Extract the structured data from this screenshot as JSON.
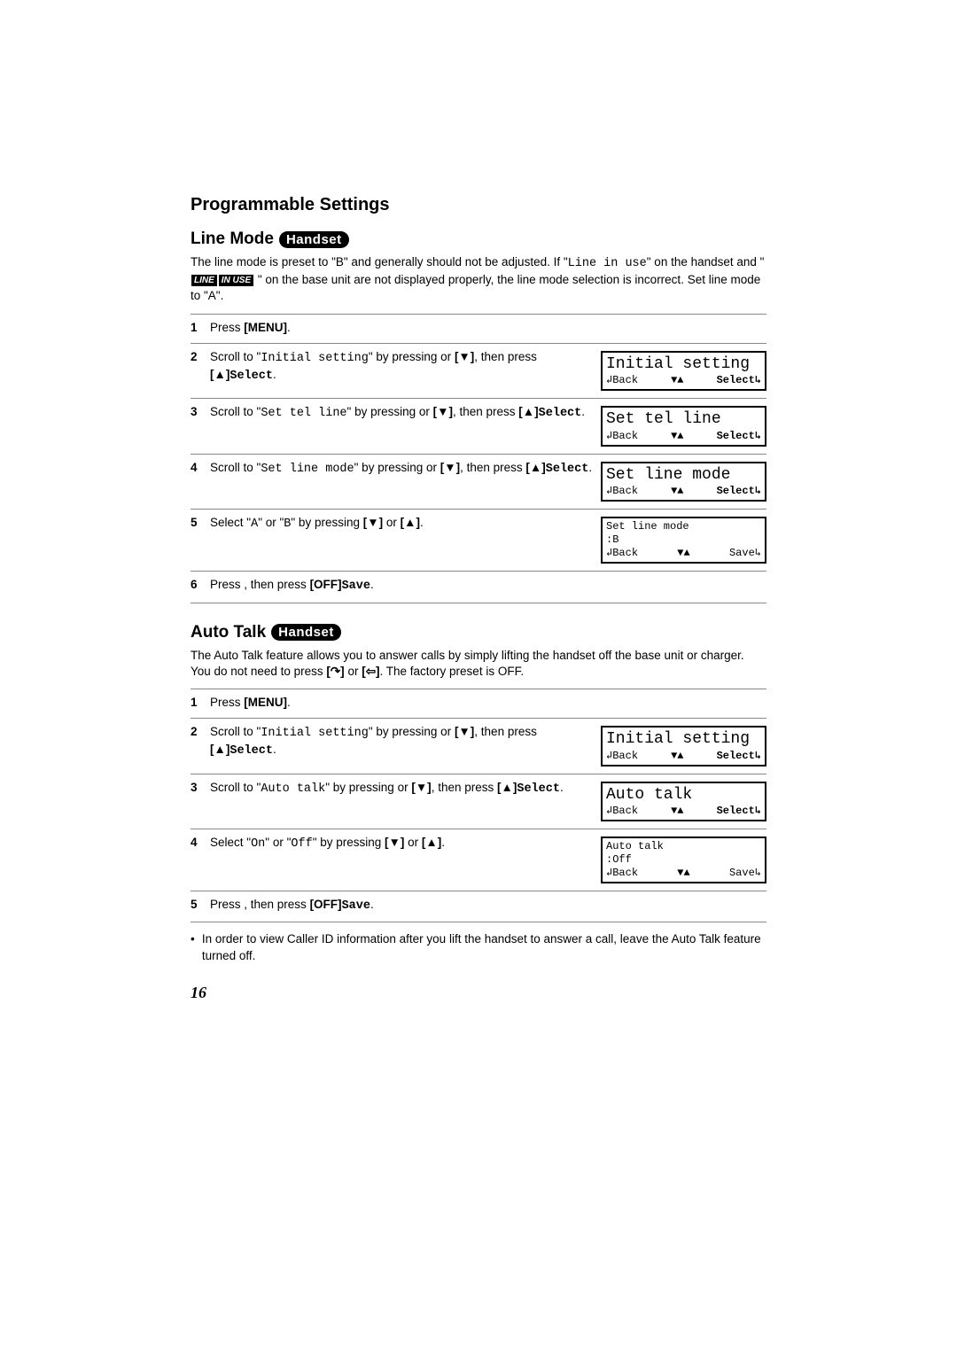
{
  "header": "Programmable Settings",
  "lineMode": {
    "title": "Line Mode",
    "badge": "Handset",
    "intro_pre": "The line mode is preset to \"B\" and generally should not be adjusted. If \"",
    "intro_mono1": "Line in use",
    "intro_mid": "\" on the handset and \" ",
    "badge_line": "LINE",
    "badge_inuse": "IN USE",
    "intro_after": " \" on the base unit are not displayed properly, the line mode selection is incorrect. Set line mode to \"A\".",
    "steps": [
      {
        "n": "1",
        "text_pre": "Press ",
        "bold1": "[MENU]",
        "text_post": "."
      },
      {
        "n": "2",
        "text_pre": "Scroll to \"",
        "mono1": "Initial setting",
        "text_mid": "\" by pressing ",
        "bold1": "[▼]",
        "text_mid2": " or ",
        "bold2": "[▲]",
        "text_mid3": ", then press ",
        "boldmono": "Select",
        "text_post": ".",
        "lcd": {
          "type": "big",
          "line1": "Initial setting",
          "left": "↲Back",
          "mid": "▼▲",
          "right": "Select↳",
          "rightBold": true
        }
      },
      {
        "n": "3",
        "text_pre": "Scroll to \"",
        "mono1": "Set tel line",
        "text_mid": "\" by pressing ",
        "bold1": "[▼]",
        "text_mid2": " or ",
        "bold2": "[▲]",
        "text_mid3": ", then press ",
        "boldmono": "Select",
        "text_post": ".",
        "lcd": {
          "type": "big",
          "line1": "Set tel line",
          "left": "↲Back",
          "mid": "▼▲",
          "right": "Select↳",
          "rightBold": true
        }
      },
      {
        "n": "4",
        "text_pre": "Scroll to \"",
        "mono1": "Set line mode",
        "text_mid": "\" by pressing ",
        "bold1": "[▼]",
        "text_mid2": " or ",
        "bold2": "[▲]",
        "text_mid3": ", then press ",
        "boldmono": "Select",
        "text_post": ".",
        "lcd": {
          "type": "big",
          "line1": "Set line mode",
          "left": "↲Back",
          "mid": "▼▲",
          "right": "Select↳",
          "rightBold": true
        }
      },
      {
        "n": "5",
        "text_pre": "Select \"",
        "mono1": "A",
        "text_mid": "\" or \"",
        "mono2": "B",
        "text_mid2": "\" by pressing ",
        "bold1": "[▼]",
        "text_mid3": " or ",
        "bold2": "[▲]",
        "text_post": ".",
        "lcd": {
          "type": "small",
          "line1": "Set line mode",
          "line2": ":B",
          "left": "↲Back",
          "mid": "▼▲",
          "right": "Save↳",
          "rightBold": false
        }
      },
      {
        "n": "6",
        "text_pre": "Press ",
        "boldmono": "Save",
        "text_mid": ", then press ",
        "bold1": "[OFF]",
        "text_post": "."
      }
    ]
  },
  "autoTalk": {
    "title": "Auto Talk",
    "badge": "Handset",
    "intro_pre": "The Auto Talk feature allows you to answer calls by simply lifting the handset off the base unit or charger. You do not need to press ",
    "bold1": "[↷]",
    "intro_mid": " or ",
    "bold2": "[⇦]",
    "intro_post": ". The factory preset is OFF.",
    "steps": [
      {
        "n": "1",
        "text_pre": "Press ",
        "bold1": "[MENU]",
        "text_post": "."
      },
      {
        "n": "2",
        "text_pre": "Scroll to \"",
        "mono1": "Initial setting",
        "text_mid": "\" by pressing ",
        "bold1": "[▼]",
        "text_mid2": " or ",
        "bold2": "[▲]",
        "text_mid3": ", then press ",
        "boldmono": "Select",
        "text_post": ".",
        "lcd": {
          "type": "big",
          "line1": "Initial setting",
          "left": "↲Back",
          "mid": "▼▲",
          "right": "Select↳",
          "rightBold": true
        }
      },
      {
        "n": "3",
        "text_pre": "Scroll to \"",
        "mono1": "Auto talk",
        "text_mid": "\" by pressing ",
        "bold1": "[▼]",
        "text_mid2": " or ",
        "bold2": "[▲]",
        "text_mid3": ", then press ",
        "boldmono": "Select",
        "text_post": ".",
        "lcd": {
          "type": "big",
          "line1": "Auto talk",
          "left": "↲Back",
          "mid": "▼▲",
          "right": "Select↳",
          "rightBold": true
        }
      },
      {
        "n": "4",
        "text_pre": "Select \"",
        "mono1": "On",
        "text_mid": "\" or \"",
        "mono2": "Off",
        "text_mid2": "\" by pressing ",
        "bold1": "[▼]",
        "text_mid3": " or ",
        "bold2": "[▲]",
        "text_post": ".",
        "lcd": {
          "type": "small",
          "line1": "Auto talk",
          "line2": ":Off",
          "left": "↲Back",
          "mid": "▼▲",
          "right": "Save↳",
          "rightBold": false
        }
      },
      {
        "n": "5",
        "text_pre": "Press ",
        "boldmono": "Save",
        "text_mid": ", then press ",
        "bold1": "[OFF]",
        "text_post": "."
      }
    ],
    "note": "In order to view Caller ID information after you lift the handset to answer a call, leave the Auto Talk feature turned off."
  },
  "pageNumber": "16"
}
